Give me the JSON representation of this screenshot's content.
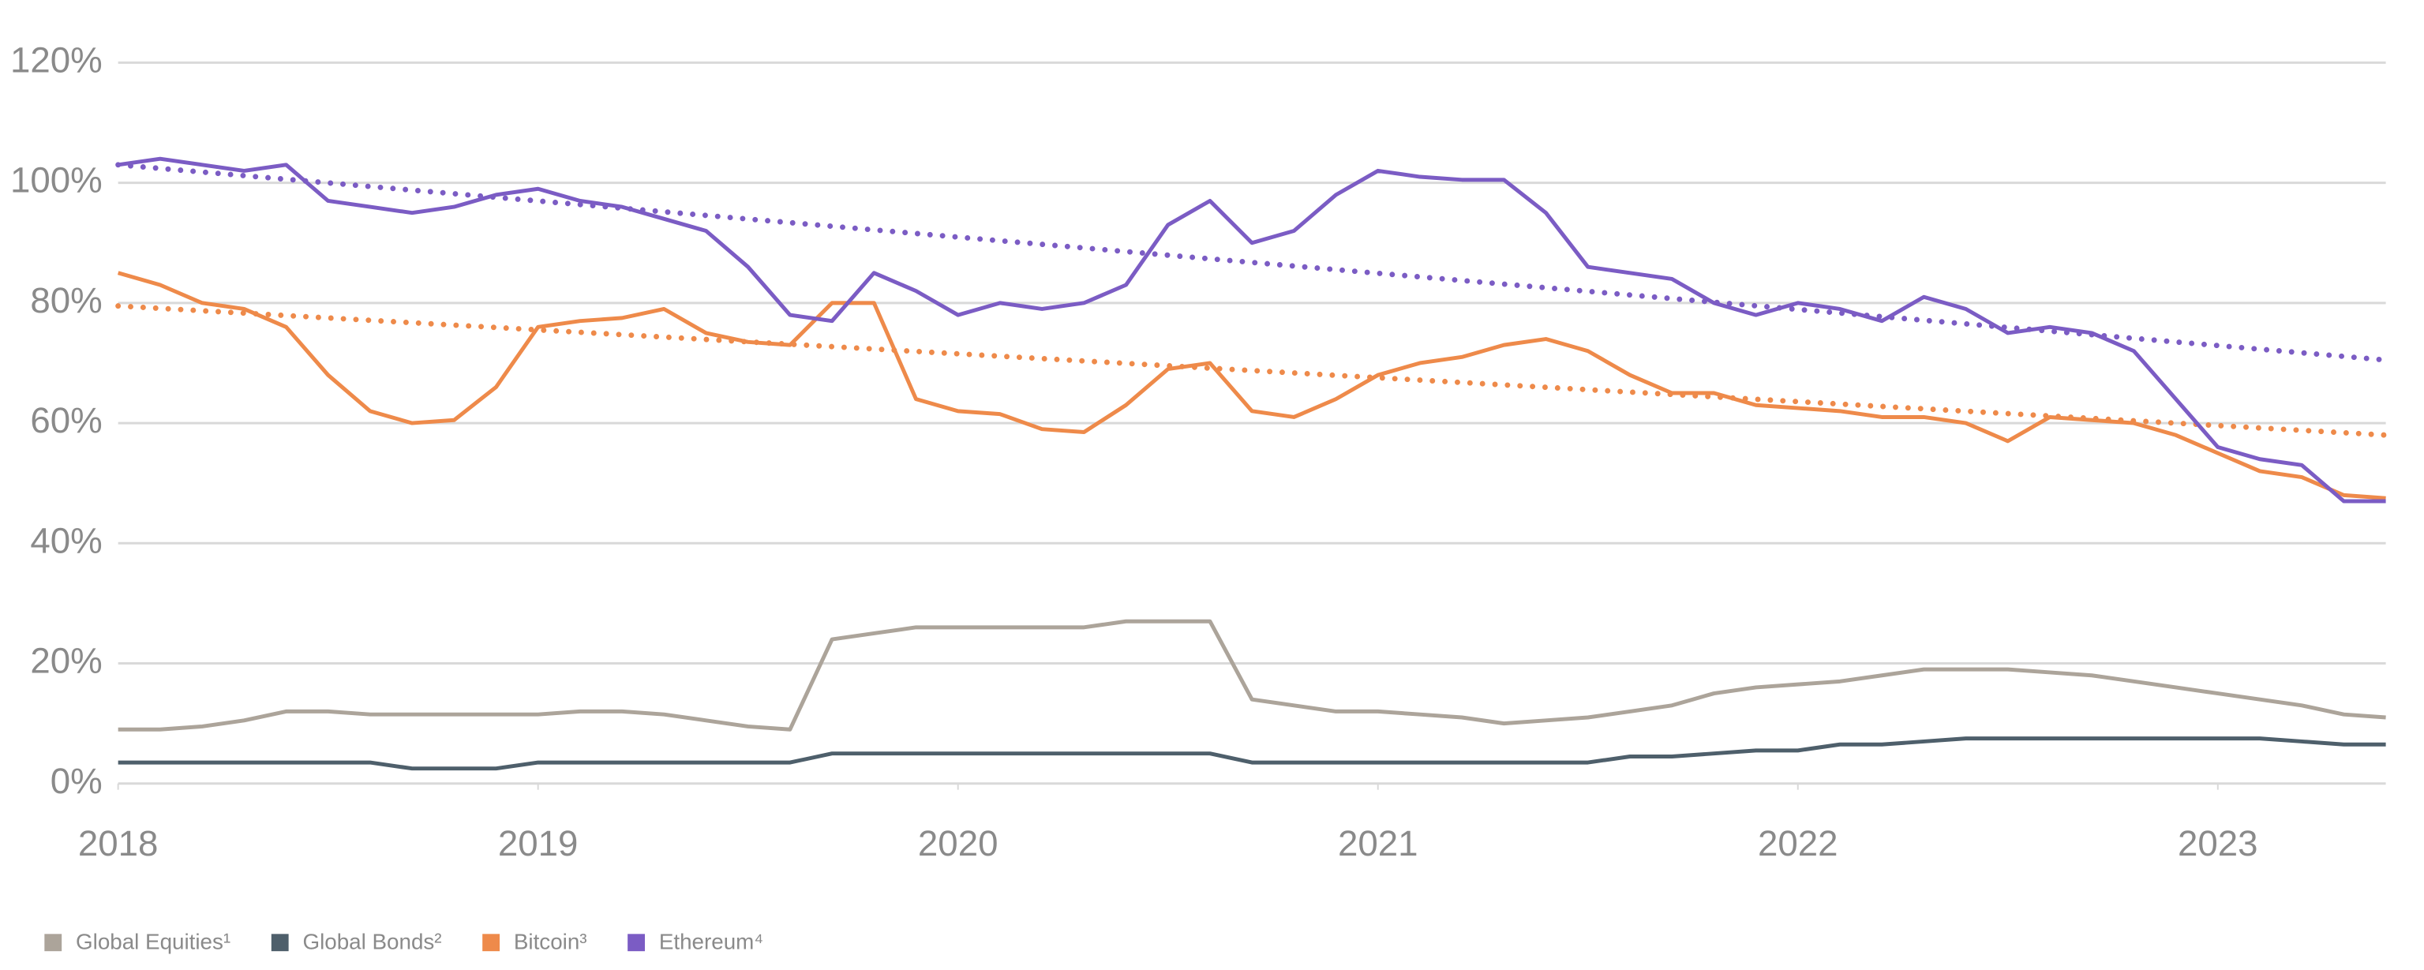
{
  "chart_data": {
    "type": "line",
    "x": [
      2018.0,
      2018.1,
      2018.2,
      2018.3,
      2018.4,
      2018.5,
      2018.6,
      2018.7,
      2018.8,
      2018.9,
      2019.0,
      2019.1,
      2019.2,
      2019.3,
      2019.4,
      2019.5,
      2019.6,
      2019.7,
      2019.8,
      2019.9,
      2020.0,
      2020.1,
      2020.2,
      2020.3,
      2020.4,
      2020.5,
      2020.6,
      2020.7,
      2020.8,
      2020.9,
      2021.0,
      2021.1,
      2021.2,
      2021.3,
      2021.4,
      2021.5,
      2021.6,
      2021.7,
      2021.8,
      2021.9,
      2022.0,
      2022.1,
      2022.2,
      2022.3,
      2022.4,
      2022.5,
      2022.6,
      2022.7,
      2022.8,
      2022.9,
      2023.0,
      2023.1,
      2023.2,
      2023.3,
      2023.4
    ],
    "series": [
      {
        "name": "Global Equities¹",
        "color": "#aca49a",
        "values": [
          9,
          9,
          9.5,
          10.5,
          12,
          12,
          11.5,
          11.5,
          11.5,
          11.5,
          11.5,
          12,
          12,
          11.5,
          10.5,
          9.5,
          9,
          24,
          25,
          26,
          26,
          26,
          26,
          26,
          27,
          27,
          27,
          14,
          13,
          12,
          12,
          11.5,
          11,
          10,
          10.5,
          11,
          12,
          13,
          15,
          16,
          16.5,
          17,
          18,
          19,
          19,
          19,
          18.5,
          18,
          17,
          16,
          15,
          14,
          13,
          11.5,
          11
        ]
      },
      {
        "name": "Global Bonds²",
        "color": "#4e5f6b",
        "values": [
          3.5,
          3.5,
          3.5,
          3.5,
          3.5,
          3.5,
          3.5,
          2.5,
          2.5,
          2.5,
          3.5,
          3.5,
          3.5,
          3.5,
          3.5,
          3.5,
          3.5,
          5,
          5,
          5,
          5,
          5,
          5,
          5,
          5,
          5,
          5,
          3.5,
          3.5,
          3.5,
          3.5,
          3.5,
          3.5,
          3.5,
          3.5,
          3.5,
          4.5,
          4.5,
          5,
          5.5,
          5.5,
          6.5,
          6.5,
          7,
          7.5,
          7.5,
          7.5,
          7.5,
          7.5,
          7.5,
          7.5,
          7.5,
          7,
          6.5,
          6.5
        ]
      },
      {
        "name": "Bitcoin³",
        "color": "#ee8a4a",
        "values": [
          85,
          83,
          80,
          79,
          76,
          68,
          62,
          60,
          60.5,
          66,
          76,
          77,
          77.5,
          79,
          75,
          73.5,
          73,
          80,
          80,
          64,
          62,
          61.5,
          59,
          58.5,
          63,
          69,
          70,
          62,
          61,
          64,
          68,
          70,
          71,
          73,
          74,
          72,
          68,
          65,
          65,
          63,
          62.5,
          62,
          61,
          61,
          60,
          57,
          61,
          60.5,
          60,
          58,
          55,
          52,
          51,
          48,
          47.5
        ]
      },
      {
        "name": "Ethereum⁴",
        "color": "#7b5cc4",
        "values": [
          103,
          104,
          103,
          102,
          103,
          97,
          96,
          95,
          96,
          98,
          99,
          97,
          96,
          94,
          92,
          86,
          78,
          77,
          85,
          82,
          78,
          80,
          79,
          80,
          83,
          93,
          97,
          90,
          92,
          98,
          102,
          101,
          100.5,
          100.5,
          95,
          86,
          85,
          84,
          80,
          78,
          80,
          79,
          77,
          81,
          79,
          75,
          76,
          75,
          72,
          64,
          56,
          54,
          53,
          47,
          47
        ]
      }
    ],
    "trendlines": [
      {
        "color": "#ee8a4a",
        "x": [
          2018.0,
          2023.4
        ],
        "values": [
          79.5,
          58
        ]
      },
      {
        "color": "#7b5cc4",
        "x": [
          2018.0,
          2023.4
        ],
        "values": [
          103,
          70.5
        ]
      }
    ],
    "xlim": [
      2018.0,
      2023.4
    ],
    "xticks": [
      2018,
      2019,
      2020,
      2021,
      2022,
      2023
    ],
    "ylim": [
      0,
      120
    ],
    "yticks": [
      {
        "value": 0,
        "label": "0%"
      },
      {
        "value": 20,
        "label": "20%"
      },
      {
        "value": 40,
        "label": "40%"
      },
      {
        "value": 60,
        "label": "60%"
      },
      {
        "value": 80,
        "label": "80%"
      },
      {
        "value": 100,
        "label": "100%"
      },
      {
        "value": 120,
        "label": "120%"
      }
    ],
    "grid": true
  }
}
